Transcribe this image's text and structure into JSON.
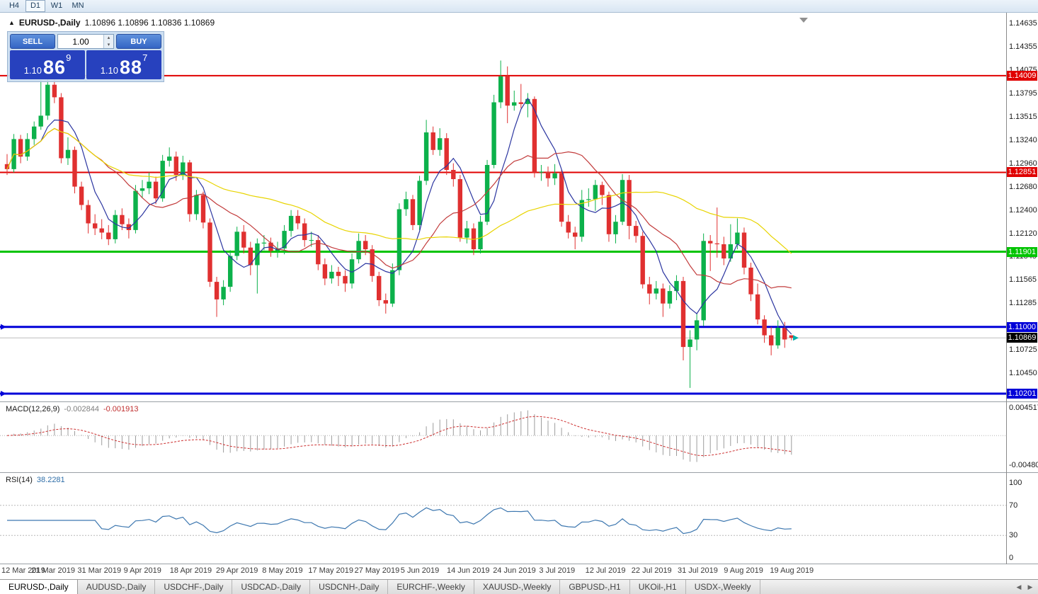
{
  "toolbar": {
    "timeframes": [
      {
        "label": "H4",
        "active": false
      },
      {
        "label": "D1",
        "active": true
      },
      {
        "label": "W1",
        "active": false
      },
      {
        "label": "MN",
        "active": false
      }
    ]
  },
  "chart_header": {
    "collapse_icon": "▲",
    "symbol_title": "EURUSD-,Daily",
    "ohlc": "1.10896 1.10896 1.10836 1.10869"
  },
  "trade_panel": {
    "sell_label": "SELL",
    "buy_label": "BUY",
    "volume": "1.00",
    "spin_up_icon": "▴",
    "spin_down_icon": "▾",
    "sell_price": {
      "base": "1.10",
      "big": "86",
      "pip": "9"
    },
    "buy_price": {
      "base": "1.10",
      "big": "88",
      "pip": "7"
    }
  },
  "chart_data": {
    "type": "candlestick",
    "symbol": "EURUSD-",
    "timeframe": "Daily",
    "y_axis": {
      "plot_max": 1.14754,
      "plot_min": 1.10108,
      "ticks": [
        1.14635,
        1.14355,
        1.14075,
        1.13795,
        1.13515,
        1.1324,
        1.1296,
        1.1268,
        1.124,
        1.1212,
        1.11845,
        1.11565,
        1.11285,
        1.10725,
        1.1045
      ]
    },
    "x_labels": [
      "12 Mar 2019",
      "21 Mar 2019",
      "31 Mar 2019",
      "9 Apr 2019",
      "18 Apr 2019",
      "29 Apr 2019",
      "8 May 2019",
      "17 May 2019",
      "27 May 2019",
      "5 Jun 2019",
      "14 Jun 2019",
      "24 Jun 2019",
      "3 Jul 2019",
      "12 Jul 2019",
      "22 Jul 2019",
      "31 Jul 2019",
      "9 Aug 2019",
      "19 Aug 2019"
    ],
    "levels": [
      {
        "price": 1.14009,
        "label": "1.14009",
        "color": "#E00000",
        "width": 2
      },
      {
        "price": 1.12851,
        "label": "1.12851",
        "color": "#E00000",
        "width": 2
      },
      {
        "price": 1.11901,
        "label": "1.11901",
        "color": "#00C400",
        "width": 3
      },
      {
        "price": 1.11,
        "label": "1.11000",
        "color": "#0000D8",
        "width": 3
      },
      {
        "price": 1.10201,
        "label": "1.10201",
        "color": "#0000D8",
        "width": 3
      }
    ],
    "current_price": {
      "value": 1.10869,
      "label": "1.10869",
      "line_color": "#BDBDBD",
      "bg": "#000000",
      "arrow_color": "#00AFA8"
    },
    "colors": {
      "up": "#0CB14B",
      "down": "#E03030"
    },
    "moving_averages": [
      {
        "period": 6,
        "color": "#2B35A0"
      },
      {
        "period": 14,
        "color": "#C23B3B"
      },
      {
        "period": 40,
        "color": "#E8D400"
      }
    ],
    "candles": [
      [
        1.1295,
        1.1307,
        1.1282,
        1.1289
      ],
      [
        1.1289,
        1.1331,
        1.1285,
        1.1325
      ],
      [
        1.1325,
        1.133,
        1.1296,
        1.1304
      ],
      [
        1.1304,
        1.1332,
        1.1299,
        1.1325
      ],
      [
        1.1325,
        1.1346,
        1.1318,
        1.134
      ],
      [
        1.134,
        1.1396,
        1.1336,
        1.1353
      ],
      [
        1.1353,
        1.1401,
        1.1348,
        1.139
      ],
      [
        1.139,
        1.1399,
        1.1368,
        1.1375
      ],
      [
        1.1375,
        1.138,
        1.1296,
        1.1302
      ],
      [
        1.1302,
        1.1327,
        1.1294,
        1.1312
      ],
      [
        1.1312,
        1.1316,
        1.126,
        1.1268
      ],
      [
        1.1268,
        1.1274,
        1.124,
        1.1246
      ],
      [
        1.1246,
        1.1252,
        1.1212,
        1.1224
      ],
      [
        1.1224,
        1.1235,
        1.121,
        1.1218
      ],
      [
        1.1218,
        1.1229,
        1.1205,
        1.1213
      ],
      [
        1.1213,
        1.1222,
        1.1198,
        1.1205
      ],
      [
        1.1205,
        1.124,
        1.12,
        1.1234
      ],
      [
        1.1234,
        1.1242,
        1.1216,
        1.1223
      ],
      [
        1.1223,
        1.123,
        1.1206,
        1.1216
      ],
      [
        1.1216,
        1.127,
        1.1212,
        1.1263
      ],
      [
        1.1263,
        1.1276,
        1.1255,
        1.1266
      ],
      [
        1.1266,
        1.1285,
        1.1259,
        1.1274
      ],
      [
        1.1274,
        1.128,
        1.1247,
        1.1254
      ],
      [
        1.1254,
        1.1306,
        1.125,
        1.1299
      ],
      [
        1.1299,
        1.1315,
        1.1292,
        1.1304
      ],
      [
        1.1304,
        1.131,
        1.1275,
        1.1282
      ],
      [
        1.1282,
        1.1305,
        1.1276,
        1.1297
      ],
      [
        1.1297,
        1.13,
        1.1226,
        1.1235
      ],
      [
        1.1235,
        1.1264,
        1.1228,
        1.1258
      ],
      [
        1.1258,
        1.1262,
        1.1218,
        1.1225
      ],
      [
        1.1225,
        1.123,
        1.1148,
        1.1154
      ],
      [
        1.1154,
        1.116,
        1.1112,
        1.1133
      ],
      [
        1.1133,
        1.1156,
        1.1126,
        1.1148
      ],
      [
        1.1148,
        1.1192,
        1.1142,
        1.1185
      ],
      [
        1.1185,
        1.122,
        1.118,
        1.1214
      ],
      [
        1.1214,
        1.1222,
        1.1188,
        1.1195
      ],
      [
        1.1195,
        1.1202,
        1.1162,
        1.1174
      ],
      [
        1.1174,
        1.1206,
        1.114,
        1.12
      ],
      [
        1.12,
        1.121,
        1.1192,
        1.1201
      ],
      [
        1.1201,
        1.1207,
        1.1184,
        1.1191
      ],
      [
        1.1191,
        1.1202,
        1.1183,
        1.1194
      ],
      [
        1.1194,
        1.1222,
        1.1187,
        1.1215
      ],
      [
        1.1215,
        1.124,
        1.1208,
        1.1233
      ],
      [
        1.1233,
        1.124,
        1.1217,
        1.1224
      ],
      [
        1.1224,
        1.123,
        1.1196,
        1.1204
      ],
      [
        1.1204,
        1.1214,
        1.1196,
        1.1204
      ],
      [
        1.1204,
        1.121,
        1.1168,
        1.1175
      ],
      [
        1.1175,
        1.1182,
        1.115,
        1.1158
      ],
      [
        1.1158,
        1.1174,
        1.1152,
        1.1166
      ],
      [
        1.1166,
        1.1172,
        1.1149,
        1.1161
      ],
      [
        1.1161,
        1.1168,
        1.1142,
        1.1152
      ],
      [
        1.1152,
        1.1188,
        1.1146,
        1.1181
      ],
      [
        1.1181,
        1.1212,
        1.1176,
        1.1203
      ],
      [
        1.1203,
        1.121,
        1.1186,
        1.1193
      ],
      [
        1.1193,
        1.1198,
        1.1154,
        1.1161
      ],
      [
        1.1161,
        1.1166,
        1.1125,
        1.1132
      ],
      [
        1.1132,
        1.114,
        1.1116,
        1.1128
      ],
      [
        1.1128,
        1.1176,
        1.1124,
        1.1168
      ],
      [
        1.1168,
        1.1248,
        1.1162,
        1.1241
      ],
      [
        1.1241,
        1.1262,
        1.1233,
        1.1253
      ],
      [
        1.1253,
        1.1258,
        1.1216,
        1.1222
      ],
      [
        1.1222,
        1.1281,
        1.1216,
        1.1275
      ],
      [
        1.1275,
        1.1348,
        1.127,
        1.1333
      ],
      [
        1.1333,
        1.134,
        1.1306,
        1.1312
      ],
      [
        1.1312,
        1.1338,
        1.1305,
        1.1326
      ],
      [
        1.1326,
        1.1332,
        1.1282,
        1.1288
      ],
      [
        1.1288,
        1.1296,
        1.1268,
        1.1277
      ],
      [
        1.1277,
        1.1282,
        1.1202,
        1.1207
      ],
      [
        1.1207,
        1.1227,
        1.12,
        1.1218
      ],
      [
        1.1218,
        1.1224,
        1.1186,
        1.1193
      ],
      [
        1.1193,
        1.1233,
        1.1188,
        1.1226
      ],
      [
        1.1226,
        1.13,
        1.1222,
        1.1294
      ],
      [
        1.1294,
        1.1378,
        1.129,
        1.1369
      ],
      [
        1.1369,
        1.1419,
        1.1362,
        1.14
      ],
      [
        1.14,
        1.1412,
        1.1344,
        1.1365
      ],
      [
        1.1365,
        1.1383,
        1.1359,
        1.1369
      ],
      [
        1.1369,
        1.1391,
        1.1362,
        1.1367
      ],
      [
        1.1367,
        1.138,
        1.1351,
        1.1373
      ],
      [
        1.1373,
        1.1376,
        1.1279,
        1.1285
      ],
      [
        1.1285,
        1.1294,
        1.1275,
        1.1286
      ],
      [
        1.1286,
        1.1292,
        1.1268,
        1.1278
      ],
      [
        1.1278,
        1.1295,
        1.127,
        1.1284
      ],
      [
        1.1284,
        1.1288,
        1.122,
        1.1226
      ],
      [
        1.1226,
        1.1234,
        1.1206,
        1.1213
      ],
      [
        1.1213,
        1.122,
        1.1193,
        1.1208
      ],
      [
        1.1208,
        1.1264,
        1.1202,
        1.1252
      ],
      [
        1.1252,
        1.1266,
        1.1244,
        1.1253
      ],
      [
        1.1253,
        1.1276,
        1.1239,
        1.127
      ],
      [
        1.127,
        1.1274,
        1.1246,
        1.1258
      ],
      [
        1.1258,
        1.1262,
        1.1202,
        1.1211
      ],
      [
        1.1211,
        1.1234,
        1.12,
        1.1226
      ],
      [
        1.1226,
        1.1283,
        1.1222,
        1.1276
      ],
      [
        1.1276,
        1.1282,
        1.1205,
        1.1221
      ],
      [
        1.1221,
        1.1227,
        1.1201,
        1.1209
      ],
      [
        1.1209,
        1.1214,
        1.1146,
        1.1151
      ],
      [
        1.1151,
        1.116,
        1.1127,
        1.114
      ],
      [
        1.114,
        1.1155,
        1.1133,
        1.1146
      ],
      [
        1.1146,
        1.1152,
        1.1112,
        1.1128
      ],
      [
        1.1128,
        1.115,
        1.1122,
        1.1143
      ],
      [
        1.1143,
        1.1162,
        1.1132,
        1.1155
      ],
      [
        1.1155,
        1.116,
        1.106,
        1.1076
      ],
      [
        1.1076,
        1.1096,
        1.1027,
        1.1085
      ],
      [
        1.1085,
        1.1116,
        1.1072,
        1.1108
      ],
      [
        1.1108,
        1.1212,
        1.1101,
        1.1203
      ],
      [
        1.1203,
        1.121,
        1.1167,
        1.12
      ],
      [
        1.12,
        1.1243,
        1.1183,
        1.1199
      ],
      [
        1.1199,
        1.1208,
        1.1174,
        1.1182
      ],
      [
        1.1182,
        1.1223,
        1.1178,
        1.1199
      ],
      [
        1.1199,
        1.123,
        1.1193,
        1.1213
      ],
      [
        1.1213,
        1.1219,
        1.1163,
        1.1171
      ],
      [
        1.1171,
        1.1177,
        1.1131,
        1.1139
      ],
      [
        1.1139,
        1.1152,
        1.1103,
        1.1109
      ],
      [
        1.1109,
        1.1114,
        1.1081,
        1.109
      ],
      [
        1.109,
        1.11,
        1.1066,
        1.1078
      ],
      [
        1.1078,
        1.1108,
        1.1074,
        1.1099
      ],
      [
        1.1099,
        1.1106,
        1.1075,
        1.1085
      ],
      [
        1.109,
        1.109,
        1.1084,
        1.1087
      ]
    ],
    "indicators": {
      "macd": {
        "name": "MACD(12,26,9)",
        "fast": 12,
        "slow": 26,
        "signal": 9,
        "value_main": "-0.002844",
        "value_signal": "-0.001913",
        "axis_max": 0.004517,
        "axis_min": -0.004806,
        "axis_max_label": "0.004517",
        "axis_min_label": "-0.004806",
        "histogram_color": "#9C9C9C",
        "signal_color": "#CC2E2E"
      },
      "rsi": {
        "name": "RSI(14)",
        "period": 14,
        "value": "38.2281",
        "levels": [
          100,
          70,
          30,
          0
        ],
        "upper": 70,
        "lower": 30,
        "line_color": "#3E78B0"
      }
    }
  },
  "tabs": {
    "scroll_left_icon": "◀",
    "scroll_right_icon": "▶",
    "items": [
      {
        "label": "EURUSD-,Daily",
        "active": true
      },
      {
        "label": "AUDUSD-,Daily",
        "active": false
      },
      {
        "label": "USDCHF-,Daily",
        "active": false
      },
      {
        "label": "USDCAD-,Daily",
        "active": false
      },
      {
        "label": "USDCNH-,Daily",
        "active": false
      },
      {
        "label": "EURCHF-,Weekly",
        "active": false
      },
      {
        "label": "XAUUSD-,Weekly",
        "active": false
      },
      {
        "label": "GBPUSD-,H1",
        "active": false
      },
      {
        "label": "UKOil-,H1",
        "active": false
      },
      {
        "label": "USDX-,Weekly",
        "active": false
      }
    ]
  }
}
